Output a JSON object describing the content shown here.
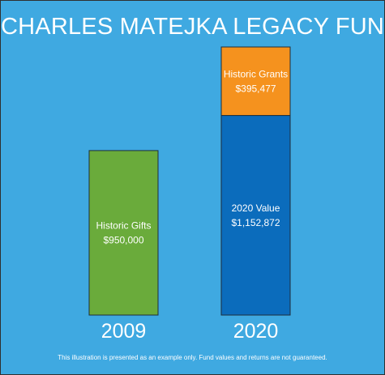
{
  "background_color": "#3fa9e1",
  "title": "CHARLES MATEJKA LEGACY FUND",
  "footnote": "This illustration is presented as an example only. Fund values and returns are not guaranteed.",
  "chart_data": {
    "type": "bar",
    "stacked": true,
    "title": "CHARLES MATEJKA LEGACY FUND",
    "xlabel": "",
    "ylabel": "",
    "categories": [
      "2009",
      "2020"
    ],
    "segments": [
      {
        "category": "2009",
        "name": "Historic Gifts",
        "label": "$950,000",
        "value": 950000,
        "color": "#6aab3b"
      },
      {
        "category": "2020",
        "name": "2020 Value",
        "label": "$1,152,872",
        "value": 1152872,
        "color": "#0b6cbc"
      },
      {
        "category": "2020",
        "name": "Historic Grants",
        "label": "$395,477",
        "value": 395477,
        "color": "#f5921e"
      }
    ],
    "ylim": [
      0,
      1548349
    ],
    "grid": false,
    "legend": "none"
  }
}
